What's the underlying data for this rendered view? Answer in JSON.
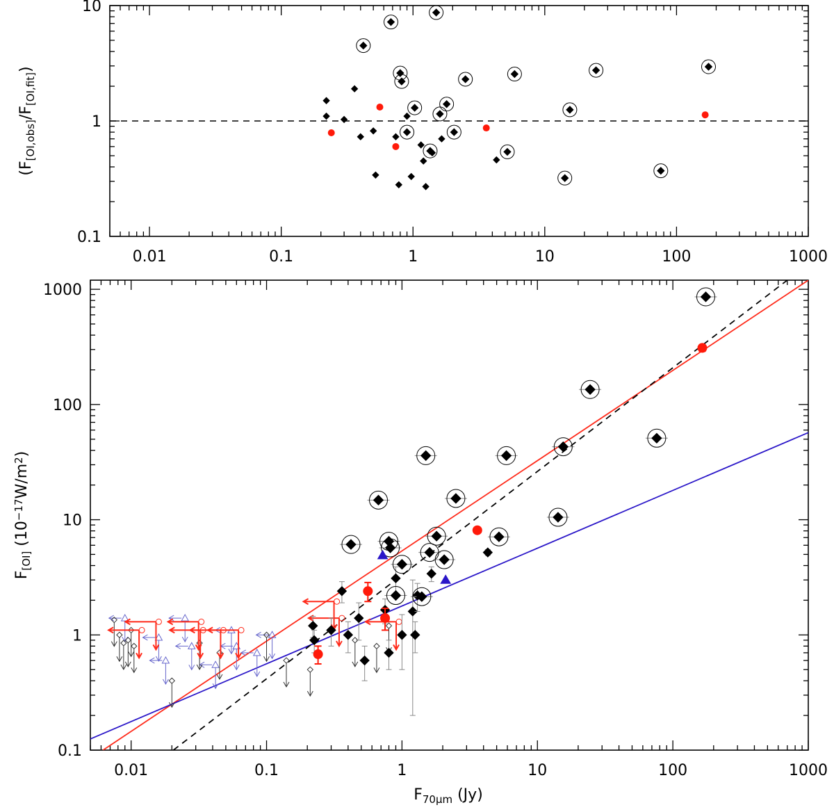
{
  "chart_data": [
    {
      "type": "scatter",
      "panel": "top",
      "xscale": "log",
      "yscale": "log",
      "xlim": [
        0.005,
        1000
      ],
      "ylim": [
        0.1,
        10
      ],
      "xticks": [
        "0.01",
        "0.1",
        "1",
        "10",
        "100",
        "1000"
      ],
      "yticks": [
        "0.1",
        "1",
        "10"
      ],
      "ylabel_parts": {
        "open": "(F",
        "sub1": "[OI,obs]",
        "mid": "/F",
        "sub2": "[OI,fit]",
        "close": ")"
      },
      "reference_line": {
        "y": 1,
        "style": "dashed"
      },
      "series": [
        {
          "name": "black_diamonds",
          "points": [
            [
              0.22,
              1.5
            ],
            [
              0.22,
              1.1
            ],
            [
              0.3,
              1.03
            ],
            [
              0.36,
              1.9
            ],
            [
              0.4,
              0.73
            ],
            [
              0.5,
              0.82
            ],
            [
              0.52,
              0.34
            ],
            [
              0.74,
              0.73
            ],
            [
              0.78,
              0.28
            ],
            [
              0.9,
              1.1
            ],
            [
              0.97,
              0.33
            ],
            [
              1.15,
              0.62
            ],
            [
              1.2,
              0.45
            ],
            [
              1.25,
              0.27
            ],
            [
              1.4,
              0.53
            ],
            [
              1.65,
              0.7
            ],
            [
              4.3,
              0.46
            ]
          ]
        },
        {
          "name": "circled_diamonds",
          "points": [
            [
              0.42,
              4.5
            ],
            [
              0.68,
              7.2
            ],
            [
              0.8,
              2.6
            ],
            [
              0.82,
              2.2
            ],
            [
              0.9,
              0.8
            ],
            [
              1.03,
              1.3
            ],
            [
              1.35,
              0.55
            ],
            [
              1.5,
              8.7
            ],
            [
              1.6,
              1.15
            ],
            [
              1.8,
              1.4
            ],
            [
              2.05,
              0.8
            ],
            [
              2.5,
              2.3
            ],
            [
              5.2,
              0.54
            ],
            [
              5.9,
              2.55
            ],
            [
              14.2,
              0.32
            ],
            [
              15.5,
              1.25
            ],
            [
              24.5,
              2.75
            ],
            [
              76,
              0.37
            ],
            [
              175,
              2.95
            ]
          ]
        },
        {
          "name": "red_dots",
          "points": [
            [
              0.24,
              0.79
            ],
            [
              0.56,
              1.32
            ],
            [
              0.74,
              0.6
            ],
            [
              3.6,
              0.87
            ],
            [
              165,
              1.13
            ]
          ]
        }
      ]
    },
    {
      "type": "scatter",
      "panel": "bottom",
      "xscale": "log",
      "yscale": "log",
      "xlim": [
        0.005,
        1000
      ],
      "ylim": [
        0.1,
        1200
      ],
      "xticks": [
        "0.01",
        "0.1",
        "1",
        "10",
        "100",
        "1000"
      ],
      "yticks": [
        "0.1",
        "1",
        "10",
        "100",
        "1000"
      ],
      "xlabel_parts": {
        "main": "F",
        "sub": "70μm",
        "unit": " (Jy)"
      },
      "ylabel_parts": {
        "main": "F",
        "sub": "[OI]",
        "unit_open": " (10",
        "sup1": "−17",
        "unit_mid": "W/m",
        "sup2": "2",
        "unit_close": ")"
      },
      "fits": [
        {
          "name": "red_fit",
          "color": "#ff2a1a",
          "style": "solid",
          "points": [
            [
              0.0062,
              0.1
            ],
            [
              1000,
              1200
            ]
          ]
        },
        {
          "name": "blue_fit",
          "color": "#2a16c8",
          "style": "solid",
          "points": [
            [
              0.005,
              0.125
            ],
            [
              1000,
              57
            ]
          ]
        },
        {
          "name": "black_fit",
          "color": "#000000",
          "style": "dashed",
          "points": [
            [
              0.0205,
              0.1
            ],
            [
              700,
              1200
            ]
          ]
        }
      ],
      "detections_black": [
        {
          "x": 0.22,
          "y": 1.2,
          "err": 0.25
        },
        {
          "x": 0.225,
          "y": 0.9,
          "err": 0.2
        },
        {
          "x": 0.3,
          "y": 1.1,
          "err": 0.3
        },
        {
          "x": 0.36,
          "y": 2.4,
          "err": 0.5
        },
        {
          "x": 0.4,
          "y": 1.0,
          "err": 0.3
        },
        {
          "x": 0.48,
          "y": 1.4,
          "err": 0.5
        },
        {
          "x": 0.53,
          "y": 0.6,
          "err": 0.2
        },
        {
          "x": 0.75,
          "y": 1.65,
          "err": 0.4
        },
        {
          "x": 0.8,
          "y": 0.7,
          "err": 0.2
        },
        {
          "x": 0.9,
          "y": 3.1,
          "err": 0.8
        },
        {
          "x": 1.0,
          "y": 1.0,
          "err": 0.5
        },
        {
          "x": 1.2,
          "y": 1.6,
          "err": 1.4
        },
        {
          "x": 1.25,
          "y": 1.0,
          "err": 0.3
        },
        {
          "x": 1.3,
          "y": 2.2,
          "err": 0.6
        },
        {
          "x": 1.65,
          "y": 3.4,
          "err": 0.5
        },
        {
          "x": 4.3,
          "y": 5.2,
          "err": 0.3
        }
      ],
      "detections_circled": [
        {
          "x": 0.42,
          "y": 6.1
        },
        {
          "x": 0.67,
          "y": 14.8
        },
        {
          "x": 0.8,
          "y": 6.5
        },
        {
          "x": 0.82,
          "y": 5.7
        },
        {
          "x": 0.9,
          "y": 2.2
        },
        {
          "x": 1.0,
          "y": 4.1
        },
        {
          "x": 1.4,
          "y": 2.15
        },
        {
          "x": 1.5,
          "y": 36
        },
        {
          "x": 1.6,
          "y": 5.2
        },
        {
          "x": 1.8,
          "y": 7.2
        },
        {
          "x": 2.05,
          "y": 4.5
        },
        {
          "x": 2.5,
          "y": 15.3
        },
        {
          "x": 5.2,
          "y": 7.1
        },
        {
          "x": 5.9,
          "y": 36
        },
        {
          "x": 14.2,
          "y": 10.5
        },
        {
          "x": 15.5,
          "y": 43
        },
        {
          "x": 24.5,
          "y": 135
        },
        {
          "x": 76,
          "y": 51
        },
        {
          "x": 175,
          "y": 860
        }
      ],
      "detections_red": [
        {
          "x": 0.24,
          "y": 0.68,
          "err": 0.12
        },
        {
          "x": 0.56,
          "y": 2.4,
          "err": 0.45
        },
        {
          "x": 0.75,
          "y": 1.4,
          "err": 0.3
        },
        {
          "x": 3.6,
          "y": 8.1,
          "err": 0.3
        },
        {
          "x": 165,
          "y": 310,
          "err": 20
        }
      ],
      "blue_triangles": [
        {
          "x": 0.72,
          "y": 4.9
        },
        {
          "x": 2.1,
          "y": 3.0
        }
      ],
      "upper_limits_black": [
        {
          "x": 0.0075,
          "y": 1.35
        },
        {
          "x": 0.0082,
          "y": 1.0
        },
        {
          "x": 0.0088,
          "y": 0.85
        },
        {
          "x": 0.0095,
          "y": 0.9
        },
        {
          "x": 0.01,
          "y": 1.1
        },
        {
          "x": 0.0105,
          "y": 0.8
        },
        {
          "x": 0.02,
          "y": 0.4
        },
        {
          "x": 0.032,
          "y": 0.85
        },
        {
          "x": 0.045,
          "y": 0.7
        },
        {
          "x": 0.1,
          "y": 1.0
        },
        {
          "x": 0.14,
          "y": 0.6
        },
        {
          "x": 0.21,
          "y": 0.5
        },
        {
          "x": 0.45,
          "y": 0.9
        },
        {
          "x": 0.65,
          "y": 0.8
        },
        {
          "x": 0.8,
          "y": 1.2
        }
      ],
      "upper_limits_blue": [
        {
          "x": 0.009,
          "y": 1.4
        },
        {
          "x": 0.016,
          "y": 0.95
        },
        {
          "x": 0.018,
          "y": 0.6
        },
        {
          "x": 0.025,
          "y": 1.4
        },
        {
          "x": 0.028,
          "y": 0.8
        },
        {
          "x": 0.042,
          "y": 0.55
        },
        {
          "x": 0.055,
          "y": 1.1
        },
        {
          "x": 0.06,
          "y": 0.8
        },
        {
          "x": 0.085,
          "y": 0.7
        },
        {
          "x": 0.11,
          "y": 1.0
        }
      ],
      "upper_limits_red": [
        {
          "x": 0.012,
          "y": 1.1
        },
        {
          "x": 0.016,
          "y": 1.3
        },
        {
          "x": 0.033,
          "y": 1.3
        },
        {
          "x": 0.034,
          "y": 1.1
        },
        {
          "x": 0.048,
          "y": 1.1
        },
        {
          "x": 0.065,
          "y": 1.1
        },
        {
          "x": 0.33,
          "y": 1.95
        },
        {
          "x": 0.36,
          "y": 1.4
        },
        {
          "x": 0.95,
          "y": 1.3
        }
      ]
    }
  ]
}
